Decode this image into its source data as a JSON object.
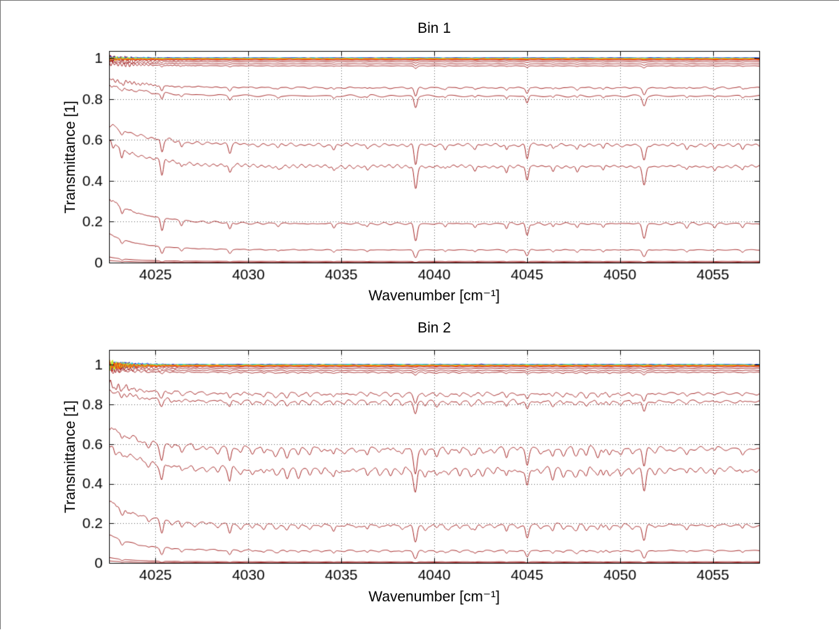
{
  "figure": {
    "background": "#FFFFFF"
  },
  "chart_data": [
    {
      "type": "line",
      "title": "Bin 1",
      "xlabel": "Wavenumber [cm⁻¹]",
      "ylabel": "Transmittance [1]",
      "xlim": [
        4022.5,
        4057.5
      ],
      "ylim": [
        0,
        1.035
      ],
      "xticks": [
        4025,
        4030,
        4035,
        4040,
        4045,
        4050,
        4055
      ],
      "yticks": [
        0,
        0.2,
        0.4,
        0.6,
        0.8,
        1
      ],
      "grid": "dotted",
      "legend": "none",
      "line_color_red": "#A22222",
      "red_levels": [
        0.999,
        0.9975,
        0.995,
        0.99,
        0.982,
        0.972,
        0.962,
        0.855,
        0.815,
        0.575,
        0.47,
        0.19,
        0.062,
        0.006,
        0.0015
      ],
      "colored_series": [
        {
          "color": "#00008F",
          "level": 1.001
        },
        {
          "color": "#0000E8",
          "level": 1.0
        },
        {
          "color": "#0044FF",
          "level": 1.0
        },
        {
          "color": "#0098FF",
          "level": 0.9995
        },
        {
          "color": "#00D8FF",
          "level": 0.999
        },
        {
          "color": "#2CFFD0",
          "level": 0.9988
        },
        {
          "color": "#74FF84",
          "level": 0.9982
        },
        {
          "color": "#BCFF3C",
          "level": 0.9978
        },
        {
          "color": "#F4F000",
          "level": 0.9972
        },
        {
          "color": "#FFB000",
          "level": 0.9965
        },
        {
          "color": "#FF6C00",
          "level": 0.9955
        },
        {
          "color": "#F62D00",
          "level": 0.994
        }
      ],
      "absorption_lines": [
        {
          "center": 4023.2,
          "depth": 0.1,
          "width": 0.1
        },
        {
          "center": 4025.35,
          "depth": 0.22,
          "width": 0.1
        },
        {
          "center": 4026.4,
          "depth": 0.08,
          "width": 0.09
        },
        {
          "center": 4029.0,
          "depth": 0.13,
          "width": 0.1
        },
        {
          "center": 4031.6,
          "depth": 0.05,
          "width": 0.1
        },
        {
          "center": 4034.6,
          "depth": 0.07,
          "width": 0.09
        },
        {
          "center": 4036.4,
          "depth": 0.05,
          "width": 0.09
        },
        {
          "center": 4039.0,
          "depth": 0.34,
          "width": 0.11
        },
        {
          "center": 4040.6,
          "depth": 0.05,
          "width": 0.08
        },
        {
          "center": 4042.2,
          "depth": 0.06,
          "width": 0.09
        },
        {
          "center": 4043.9,
          "depth": 0.08,
          "width": 0.08
        },
        {
          "center": 4045.0,
          "depth": 0.22,
          "width": 0.1
        },
        {
          "center": 4046.4,
          "depth": 0.06,
          "width": 0.08
        },
        {
          "center": 4047.7,
          "depth": 0.07,
          "width": 0.09
        },
        {
          "center": 4049.1,
          "depth": 0.06,
          "width": 0.08
        },
        {
          "center": 4051.3,
          "depth": 0.27,
          "width": 0.12
        },
        {
          "center": 4053.6,
          "depth": 0.06,
          "width": 0.09
        },
        {
          "center": 4055.1,
          "depth": 0.05,
          "width": 0.08
        },
        {
          "center": 4056.6,
          "depth": 0.06,
          "width": 0.09
        }
      ],
      "edge_effect": {
        "amplitude": 0.3,
        "scale": 2.2
      },
      "noise": {
        "base_amplitude": 0.012,
        "comb_amplitude": 0.0,
        "comb_spacing": 0.62,
        "left_wiggle_amplitude": 0.02,
        "colored_spike_amplitude": 0.018
      },
      "seed": 7
    },
    {
      "type": "line",
      "title": "Bin 2",
      "xlabel": "Wavenumber [cm⁻¹]",
      "ylabel": "Transmittance [1]",
      "xlim": [
        4022.5,
        4057.5
      ],
      "ylim": [
        0,
        1.075
      ],
      "xticks": [
        4025,
        4030,
        4035,
        4040,
        4045,
        4050,
        4055
      ],
      "yticks": [
        0,
        0.2,
        0.4,
        0.6,
        0.8,
        1
      ],
      "grid": "dotted",
      "legend": "none",
      "line_color_red": "#A22222",
      "red_levels": [
        0.999,
        0.9975,
        0.995,
        0.99,
        0.982,
        0.972,
        0.962,
        0.855,
        0.815,
        0.575,
        0.47,
        0.19,
        0.062,
        0.006,
        0.0015
      ],
      "colored_series": [
        {
          "color": "#00008F",
          "level": 1.001
        },
        {
          "color": "#0000E8",
          "level": 1.0
        },
        {
          "color": "#0044FF",
          "level": 1.0
        },
        {
          "color": "#0098FF",
          "level": 0.9995
        },
        {
          "color": "#00D8FF",
          "level": 0.999
        },
        {
          "color": "#2CFFD0",
          "level": 0.9988
        },
        {
          "color": "#74FF84",
          "level": 0.9982
        },
        {
          "color": "#BCFF3C",
          "level": 0.9978
        },
        {
          "color": "#F4F000",
          "level": 0.9972
        },
        {
          "color": "#FFB000",
          "level": 0.9965
        },
        {
          "color": "#FF6C00",
          "level": 0.9955
        },
        {
          "color": "#F62D00",
          "level": 0.994
        }
      ],
      "absorption_lines": [
        {
          "center": 4023.2,
          "depth": 0.1,
          "width": 0.1
        },
        {
          "center": 4025.35,
          "depth": 0.22,
          "width": 0.1
        },
        {
          "center": 4026.4,
          "depth": 0.08,
          "width": 0.09
        },
        {
          "center": 4029.0,
          "depth": 0.13,
          "width": 0.1
        },
        {
          "center": 4031.6,
          "depth": 0.05,
          "width": 0.1
        },
        {
          "center": 4034.6,
          "depth": 0.07,
          "width": 0.09
        },
        {
          "center": 4036.4,
          "depth": 0.05,
          "width": 0.09
        },
        {
          "center": 4039.0,
          "depth": 0.34,
          "width": 0.11
        },
        {
          "center": 4040.6,
          "depth": 0.05,
          "width": 0.08
        },
        {
          "center": 4042.2,
          "depth": 0.06,
          "width": 0.09
        },
        {
          "center": 4043.9,
          "depth": 0.08,
          "width": 0.08
        },
        {
          "center": 4045.0,
          "depth": 0.22,
          "width": 0.1
        },
        {
          "center": 4046.4,
          "depth": 0.06,
          "width": 0.08
        },
        {
          "center": 4047.7,
          "depth": 0.07,
          "width": 0.09
        },
        {
          "center": 4049.1,
          "depth": 0.06,
          "width": 0.08
        },
        {
          "center": 4051.3,
          "depth": 0.27,
          "width": 0.12
        },
        {
          "center": 4053.6,
          "depth": 0.06,
          "width": 0.09
        },
        {
          "center": 4055.1,
          "depth": 0.05,
          "width": 0.08
        },
        {
          "center": 4056.6,
          "depth": 0.06,
          "width": 0.09
        }
      ],
      "edge_effect": {
        "amplitude": 0.3,
        "scale": 2.2
      },
      "noise": {
        "base_amplitude": 0.02,
        "comb_amplitude": 0.035,
        "comb_spacing": 0.62,
        "left_wiggle_amplitude": 0.03,
        "colored_spike_amplitude": 0.05
      },
      "seed": 13
    }
  ]
}
